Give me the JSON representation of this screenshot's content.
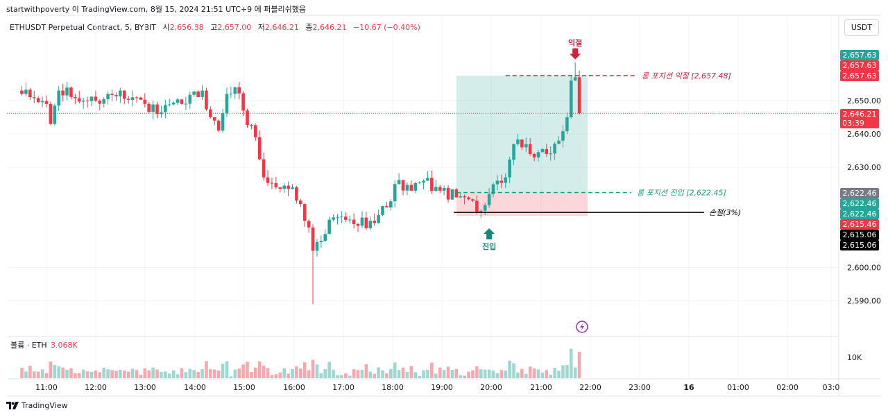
{
  "header": {
    "caption": "startwithpoverty 이 TradingView.com, 8월 15, 2024 21:51 UTC+9 에 퍼블리쉬했음"
  },
  "symbol": {
    "name": "ETHUSDT Perpetual Contract, 5, BYBIT",
    "o_label": "시",
    "o_value": "2,656.88",
    "h_label": "고",
    "h_value": "2,657.00",
    "l_label": "저",
    "l_value": "2,646.21",
    "c_label": "종",
    "c_value": "2,646.21",
    "change": "−10.67 (−0.40%)"
  },
  "currency_button": "USDT",
  "footer": {
    "brand": "TradingView"
  },
  "colors": {
    "up": "#26a69a",
    "down": "#f23645",
    "vol_up": "#9ed7d1",
    "vol_down": "#f6a8ae"
  },
  "chart_data": {
    "type": "candlestick",
    "y_axis": {
      "ylim": [
        2585,
        2662
      ],
      "ticks": [
        2590,
        2600,
        2630,
        2640,
        2650
      ],
      "tick_labels": [
        "2,590.00",
        "2,600.00",
        "2,630.00",
        "2,640.00",
        "2,650.00"
      ]
    },
    "x_axis": {
      "tick_labels": [
        "11:00",
        "12:00",
        "13:00",
        "14:00",
        "15:00",
        "16:00",
        "17:00",
        "18:00",
        "19:00",
        "20:00",
        "21:00",
        "22:00",
        "23:00",
        "16",
        "01:00",
        "02:00",
        "03:0"
      ]
    },
    "price_keypoints": [
      {
        "time": "10:30",
        "close": 2652.0
      },
      {
        "time": "11:00",
        "close": 2649.0
      },
      {
        "time": "11:05",
        "close": 2643.0
      },
      {
        "time": "11:15",
        "close": 2653.0
      },
      {
        "time": "11:45",
        "close": 2650.0
      },
      {
        "time": "12:00",
        "close": 2650.0
      },
      {
        "time": "12:30",
        "close": 2653.0
      },
      {
        "time": "13:00",
        "close": 2649.0
      },
      {
        "time": "13:15",
        "close": 2646.0
      },
      {
        "time": "13:45",
        "close": 2649.0
      },
      {
        "time": "14:10",
        "close": 2653.0
      },
      {
        "time": "14:20",
        "close": 2645.0
      },
      {
        "time": "14:30",
        "close": 2641.0
      },
      {
        "time": "14:40",
        "close": 2652.0
      },
      {
        "time": "14:50",
        "close": 2654.0
      },
      {
        "time": "15:00",
        "close": 2647.0
      },
      {
        "time": "15:15",
        "close": 2639.0
      },
      {
        "time": "15:25",
        "close": 2627.0
      },
      {
        "time": "15:40",
        "close": 2624.0
      },
      {
        "time": "16:00",
        "close": 2624.0
      },
      {
        "time": "16:10",
        "close": 2619.0
      },
      {
        "time": "16:20",
        "close": 2612.0
      },
      {
        "time": "16:25",
        "close": 2605.0
      },
      {
        "time": "16:35",
        "close": 2608.0
      },
      {
        "time": "16:50",
        "close": 2615.0
      },
      {
        "time": "17:15",
        "close": 2613.0
      },
      {
        "time": "17:35",
        "close": 2614.0
      },
      {
        "time": "17:55",
        "close": 2618.0
      },
      {
        "time": "18:05",
        "close": 2625.0
      },
      {
        "time": "18:25",
        "close": 2623.0
      },
      {
        "time": "18:40",
        "close": 2626.0
      },
      {
        "time": "19:00",
        "close": 2623.0
      },
      {
        "time": "19:20",
        "close": 2621.0
      },
      {
        "time": "19:30",
        "close": 2621.0
      },
      {
        "time": "19:40",
        "close": 2620.0
      },
      {
        "time": "19:50",
        "close": 2617.0
      },
      {
        "time": "20:00",
        "close": 2622.0
      },
      {
        "time": "20:10",
        "close": 2626.0
      },
      {
        "time": "20:20",
        "close": 2627.0
      },
      {
        "time": "20:30",
        "close": 2637.0
      },
      {
        "time": "20:40",
        "close": 2636.0
      },
      {
        "time": "20:55",
        "close": 2633.0
      },
      {
        "time": "21:10",
        "close": 2634.0
      },
      {
        "time": "21:25",
        "close": 2638.0
      },
      {
        "time": "21:35",
        "close": 2645.0
      },
      {
        "time": "21:40",
        "close": 2656.0
      },
      {
        "time": "21:45",
        "close": 2657.0
      },
      {
        "time": "21:50",
        "close": 2646.21
      }
    ],
    "notable_extremes": {
      "high": 2661.5,
      "high_time": "21:45",
      "low": 2589,
      "low_time": "16:25"
    },
    "position_tool": {
      "start_time": "19:20",
      "end_time": "22:00",
      "entry": 2622.45,
      "target": 2657.48,
      "stop": 2615.46
    },
    "annotations": [
      {
        "text": "익절",
        "time": "21:45",
        "price": 2661.5,
        "kind": "sell-arrow"
      },
      {
        "text": "진입",
        "time": "20:00",
        "price": 2615.5,
        "kind": "buy-arrow"
      }
    ],
    "lines": [
      {
        "label": "롱 포지션 익절 [2,657.48]",
        "price": 2657.48,
        "style": "dashed",
        "color": "#d31f3a"
      },
      {
        "label": "롱 포지션 진입 [2,622.45]",
        "price": 2622.45,
        "style": "dashed",
        "color": "#1a9c84"
      },
      {
        "label": "손절(3%)",
        "price": 2616.5,
        "style": "solid",
        "color": "#000000"
      }
    ],
    "current_price_line": 2646.21,
    "price_labels": [
      {
        "price": 2657.63,
        "text": "2,657.63",
        "bg": "#26a69a"
      },
      {
        "price": 2657.63,
        "text": "2,657.63",
        "bg": "#f23645"
      },
      {
        "price": 2657.63,
        "text": "2,657.63",
        "bg": "#f23645"
      },
      {
        "price": 2646.21,
        "text": "2,646.21",
        "sub": "03:39",
        "bg": "#f23645"
      },
      {
        "price": 2622.46,
        "text": "2,622.46",
        "bg": "#787b86"
      },
      {
        "price": 2622.46,
        "text": "2,622.46",
        "bg": "#26a69a"
      },
      {
        "price": 2622.46,
        "text": "2,622.46",
        "bg": "#26a69a"
      },
      {
        "price": 2615.46,
        "text": "2,615.46",
        "bg": "#f23645"
      },
      {
        "price": 2615.06,
        "text": "2,615.06",
        "bg": "#000000"
      },
      {
        "price": 2615.06,
        "text": "2,615.06",
        "bg": "#000000"
      }
    ],
    "volume": {
      "label": "볼륨 · ETH",
      "value": "3.068K",
      "tick_label": "10K",
      "peak": 17000
    }
  }
}
